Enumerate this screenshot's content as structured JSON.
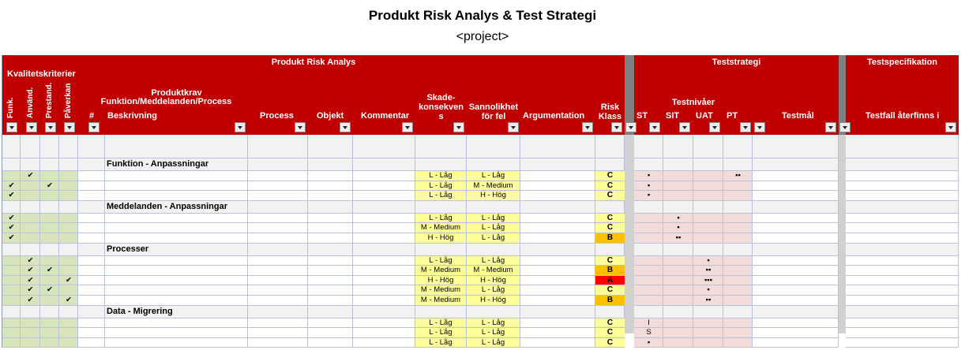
{
  "title": "Produkt Risk Analys & Test Strategi",
  "subtitle": "<project>",
  "headers": {
    "produkt_risk_analys": "Produkt Risk Analys",
    "teststrategi": "Teststrategi",
    "testspecifikation": "Testspecifikation",
    "kvalitetskriterier": "Kvalitetskriterier",
    "funk": "Funk.",
    "anvand": "Använd.",
    "prestand": "Prestand.",
    "paverkan": "Påverkan",
    "produktkrav_line1": "Produktkrav",
    "produktkrav_line2": "Funktion/Meddelanden/Process",
    "hash": "#",
    "beskrivning": "Beskrivning",
    "process": "Process",
    "objekt": "Objekt",
    "kommentar": "Kommentar",
    "skade_line1": "Skade-",
    "skade_line2": "konsekven",
    "skade_line3": "s",
    "sannolikhet_line1": "Sannolikhet",
    "sannolikhet_line2": "för fel",
    "argumentation": "Argumentation",
    "risk_line1": "Risk",
    "risk_line2": "Klass",
    "testnivaer": "Testnivåer",
    "st": "ST",
    "sit": "SIT",
    "uat": "UAT",
    "pt": "PT",
    "testmal": "Testmål",
    "testfall": "Testfall återfinns i"
  },
  "sections": [
    {
      "title": "Funktion - Anpassningar",
      "rows": [
        {
          "funk": "",
          "anvand": "✔",
          "prestand": "",
          "paverkan": "",
          "skade": "L - Låg",
          "sannolikhet": "L - Låg",
          "klass": "C",
          "st": "▪",
          "sit": "",
          "uat": "",
          "pt": "▪▪"
        },
        {
          "funk": "✔",
          "anvand": "",
          "prestand": "✔",
          "paverkan": "",
          "skade": "L - Låg",
          "sannolikhet": "M - Medium",
          "klass": "C",
          "st": "▪",
          "sit": "",
          "uat": "",
          "pt": ""
        },
        {
          "funk": "✔",
          "anvand": "",
          "prestand": "",
          "paverkan": "",
          "skade": "L - Låg",
          "sannolikhet": "H - Hög",
          "klass": "C",
          "st": "▪",
          "sit": "",
          "uat": "",
          "pt": ""
        }
      ]
    },
    {
      "title": "Meddelanden - Anpassningar",
      "rows": [
        {
          "funk": "✔",
          "anvand": "",
          "prestand": "",
          "paverkan": "",
          "skade": "L - Låg",
          "sannolikhet": "L - Låg",
          "klass": "C",
          "st": "",
          "sit": "▪",
          "uat": "",
          "pt": ""
        },
        {
          "funk": "✔",
          "anvand": "",
          "prestand": "",
          "paverkan": "",
          "skade": "M - Medium",
          "sannolikhet": "L - Låg",
          "klass": "C",
          "st": "",
          "sit": "▪",
          "uat": "",
          "pt": ""
        },
        {
          "funk": "✔",
          "anvand": "",
          "prestand": "",
          "paverkan": "",
          "skade": "H - Hög",
          "sannolikhet": "L - Låg",
          "klass": "B",
          "st": "",
          "sit": "▪▪",
          "uat": "",
          "pt": ""
        }
      ]
    },
    {
      "title": "Processer",
      "rows": [
        {
          "funk": "",
          "anvand": "✔",
          "prestand": "",
          "paverkan": "",
          "skade": "L - Låg",
          "sannolikhet": "L - Låg",
          "klass": "C",
          "st": "",
          "sit": "",
          "uat": "▪",
          "pt": ""
        },
        {
          "funk": "",
          "anvand": "✔",
          "prestand": "✔",
          "paverkan": "",
          "skade": "M - Medium",
          "sannolikhet": "M - Medium",
          "klass": "B",
          "st": "",
          "sit": "",
          "uat": "▪▪",
          "pt": ""
        },
        {
          "funk": "",
          "anvand": "✔",
          "prestand": "",
          "paverkan": "✔",
          "skade": "H - Hög",
          "sannolikhet": "H - Hög",
          "klass": "A",
          "st": "",
          "sit": "",
          "uat": "▪▪▪",
          "pt": ""
        },
        {
          "funk": "",
          "anvand": "✔",
          "prestand": "✔",
          "paverkan": "",
          "skade": "M - Medium",
          "sannolikhet": "L - Låg",
          "klass": "C",
          "st": "",
          "sit": "",
          "uat": "▪",
          "pt": ""
        },
        {
          "funk": "",
          "anvand": "✔",
          "prestand": "",
          "paverkan": "✔",
          "skade": "M - Medium",
          "sannolikhet": "H - Hög",
          "klass": "B",
          "st": "",
          "sit": "",
          "uat": "▪▪",
          "pt": ""
        }
      ]
    },
    {
      "title": "Data - Migrering",
      "rows": [
        {
          "funk": "",
          "anvand": "",
          "prestand": "",
          "paverkan": "",
          "skade": "L - Låg",
          "sannolikhet": "L - Låg",
          "klass": "C",
          "st": "I",
          "sit": "",
          "uat": "",
          "pt": ""
        },
        {
          "funk": "",
          "anvand": "",
          "prestand": "",
          "paverkan": "",
          "skade": "L - Låg",
          "sannolikhet": "L - Låg",
          "klass": "C",
          "st": "S",
          "sit": "",
          "uat": "",
          "pt": ""
        },
        {
          "funk": "",
          "anvand": "",
          "prestand": "",
          "paverkan": "",
          "skade": "L - Låg",
          "sannolikhet": "L - Låg",
          "klass": "C",
          "st": "▪",
          "sit": "",
          "uat": "",
          "pt": ""
        }
      ]
    }
  ],
  "colors": {
    "header_red": "#c00000",
    "criteria_green": "#d8e4bc",
    "risk_yellow": "#ffff99",
    "test_pink": "#f2dcdb",
    "class_c": "#ffff99",
    "class_b": "#ffc000",
    "class_a": "#ff0000"
  }
}
